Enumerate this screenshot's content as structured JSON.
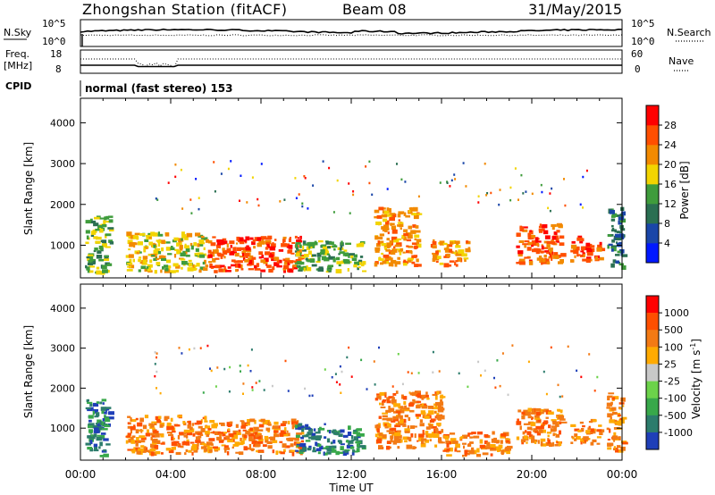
{
  "header": {
    "station": "Zhongshan Station (fitACF)",
    "beam": "Beam 08",
    "date": "31/May/2015"
  },
  "side_labels": {
    "nsky": "N.Sky",
    "freq": "Freq.",
    "freq_unit": "[MHz]",
    "cpid": "CPID",
    "nsearch": "N.Search",
    "nave": "Nave"
  },
  "top_scales": {
    "noise_left": [
      "10^5",
      "10^0"
    ],
    "noise_right": [
      "10^5",
      "10^0"
    ],
    "freq_left": [
      "18",
      "8"
    ],
    "nave_right": [
      "60",
      "0"
    ]
  },
  "cpid_text": "normal (fast stereo) 153",
  "xaxis": {
    "label": "Time UT",
    "ticks": [
      "00:00",
      "04:00",
      "08:00",
      "12:00",
      "16:00",
      "20:00",
      "00:00"
    ]
  },
  "chart_data": [
    {
      "type": "heatmap",
      "name": "power",
      "ylabel": "Slant Range [km]",
      "yticks": [
        "1000",
        "2000",
        "3000",
        "4000"
      ],
      "ylim": [
        200,
        4600
      ],
      "xlim_hours": [
        0,
        24
      ],
      "colorbar_label": "Power [dB]",
      "colorbar_ticks": [
        "4",
        "8",
        "12",
        "16",
        "20",
        "24",
        "28"
      ],
      "colors": [
        "#0018ff",
        "#1a46a8",
        "#2a6f52",
        "#3f9c3c",
        "#f2d400",
        "#f28a00",
        "#ff4f00",
        "#ff0000"
      ],
      "features": [
        {
          "x": [
            0.2,
            1.3
          ],
          "y": [
            300,
            1700
          ],
          "level": 3
        },
        {
          "x": [
            2.0,
            5.5
          ],
          "y": [
            350,
            1300
          ],
          "level": 4
        },
        {
          "x": [
            5.5,
            9.8
          ],
          "y": [
            350,
            1200
          ],
          "level": 6
        },
        {
          "x": [
            9.5,
            12.5
          ],
          "y": [
            350,
            1100
          ],
          "level": 3
        },
        {
          "x": [
            13.0,
            14.9
          ],
          "y": [
            500,
            1900
          ],
          "level": 5
        },
        {
          "x": [
            15.5,
            17.3
          ],
          "y": [
            500,
            1100
          ],
          "level": 5
        },
        {
          "x": [
            19.3,
            21.3
          ],
          "y": [
            550,
            1500
          ],
          "level": 6
        },
        {
          "x": [
            21.7,
            23.0
          ],
          "y": [
            600,
            1200
          ],
          "level": 6
        },
        {
          "x": [
            23.3,
            24.0
          ],
          "y": [
            400,
            1900
          ],
          "level": 2
        }
      ]
    },
    {
      "type": "heatmap",
      "name": "velocity",
      "ylabel": "Slant Range [km]",
      "yticks": [
        "1000",
        "2000",
        "3000",
        "4000"
      ],
      "ylim": [
        200,
        4600
      ],
      "xlim_hours": [
        0,
        24
      ],
      "colorbar_label": "Velocity [m s^-1]",
      "colorbar_ticks": [
        "1000",
        "500",
        "100",
        "25",
        "-25",
        "-100",
        "-500",
        "-1000"
      ],
      "colors": [
        "#1f3fb8",
        "#2c7c6c",
        "#38a84a",
        "#6cd24a",
        "#c8c8c8",
        "#ffaa00",
        "#f37a14",
        "#ff4f00",
        "#ff0000"
      ],
      "features": [
        {
          "x": [
            0.2,
            1.3
          ],
          "y": [
            300,
            1700
          ],
          "level": 1
        },
        {
          "x": [
            2.0,
            5.5
          ],
          "y": [
            350,
            1300
          ],
          "level": 6
        },
        {
          "x": [
            5.5,
            9.8
          ],
          "y": [
            350,
            1200
          ],
          "level": 6
        },
        {
          "x": [
            9.5,
            12.5
          ],
          "y": [
            350,
            1100
          ],
          "level": 1
        },
        {
          "x": [
            13.0,
            16.0
          ],
          "y": [
            500,
            1900
          ],
          "level": 6
        },
        {
          "x": [
            16.0,
            19.0
          ],
          "y": [
            300,
            900
          ],
          "level": 6
        },
        {
          "x": [
            19.3,
            21.3
          ],
          "y": [
            550,
            1500
          ],
          "level": 6
        },
        {
          "x": [
            21.7,
            23.0
          ],
          "y": [
            600,
            1200
          ],
          "level": 6
        },
        {
          "x": [
            23.3,
            24.0
          ],
          "y": [
            400,
            1900
          ],
          "level": 6
        }
      ]
    }
  ]
}
